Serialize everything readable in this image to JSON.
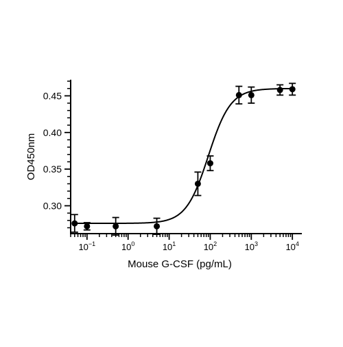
{
  "chart_data": {
    "type": "scatter",
    "title": "",
    "xlabel": "Mouse G-CSF (pg/mL)",
    "ylabel": "OD450nm",
    "x_scale": "log",
    "xlim": [
      0.04,
      17000
    ],
    "ylim": [
      0.262,
      0.472
    ],
    "grid": false,
    "legend": "none",
    "x_ticks": [
      {
        "value": 0.1,
        "base": "10",
        "exp": "−1"
      },
      {
        "value": 1,
        "base": "10",
        "exp": "0"
      },
      {
        "value": 10,
        "base": "10",
        "exp": "1"
      },
      {
        "value": 100,
        "base": "10",
        "exp": "2"
      },
      {
        "value": 1000,
        "base": "10",
        "exp": "3"
      },
      {
        "value": 10000,
        "base": "10",
        "exp": "4"
      }
    ],
    "y_ticks": [
      {
        "value": 0.3,
        "label": "0.30"
      },
      {
        "value": 0.35,
        "label": "0.35"
      },
      {
        "value": 0.4,
        "label": "0.40"
      },
      {
        "value": 0.45,
        "label": "0.45"
      }
    ],
    "series": [
      {
        "x": [
          0.05,
          0.1,
          0.5,
          5,
          50,
          100,
          500,
          1000,
          5000,
          10000
        ],
        "y": [
          0.276,
          0.272,
          0.272,
          0.272,
          0.33,
          0.358,
          0.451,
          0.451,
          0.458,
          0.459
        ],
        "error": [
          0.012,
          0.005,
          0.012,
          0.011,
          0.016,
          0.01,
          0.012,
          0.011,
          0.007,
          0.008
        ]
      }
    ],
    "fit_curve": {
      "model": "4PL",
      "bottom": 0.276,
      "top": 0.46,
      "ec50": 90,
      "hill": 1.6
    },
    "colors": {
      "marker": "#000000",
      "curve": "#000000",
      "axis": "#000000"
    }
  }
}
